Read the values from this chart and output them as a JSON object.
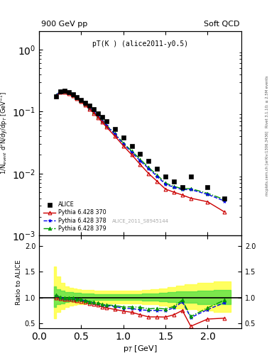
{
  "title_top": "900 GeV pp",
  "title_right": "Soft QCD",
  "plot_title": "pT(K ) (alice2011-y0.5)",
  "watermark": "ALICE_2011_S8945144",
  "right_label_top": "Rivet 3.1.10; ≥ 2.5M events",
  "right_label_mid": "mcplots.cern.ch [arXiv:1306.3436]",
  "ylabel_main": "1/N$_{event}$ d$^{2}$N/dy/dp$_{T}$ [GeV$^{-1}$]",
  "ylabel_ratio": "Ratio to ALICE",
  "xlabel": "p$_{T}$ [GeV]",
  "alice_x": [
    0.2,
    0.25,
    0.3,
    0.35,
    0.4,
    0.45,
    0.5,
    0.55,
    0.6,
    0.65,
    0.7,
    0.75,
    0.8,
    0.9,
    1.0,
    1.1,
    1.2,
    1.3,
    1.4,
    1.5,
    1.6,
    1.7,
    1.8,
    2.0,
    2.2
  ],
  "alice_y": [
    0.175,
    0.21,
    0.215,
    0.205,
    0.188,
    0.172,
    0.155,
    0.14,
    0.124,
    0.108,
    0.094,
    0.082,
    0.07,
    0.052,
    0.038,
    0.028,
    0.021,
    0.016,
    0.012,
    0.009,
    0.0075,
    0.006,
    0.009,
    0.006,
    0.004
  ],
  "py370_x": [
    0.2,
    0.25,
    0.3,
    0.35,
    0.4,
    0.45,
    0.5,
    0.55,
    0.6,
    0.65,
    0.7,
    0.75,
    0.8,
    0.9,
    1.0,
    1.1,
    1.2,
    1.3,
    1.4,
    1.5,
    1.6,
    1.7,
    1.8,
    2.0,
    2.2
  ],
  "py370_y": [
    0.175,
    0.205,
    0.207,
    0.197,
    0.18,
    0.162,
    0.144,
    0.127,
    0.11,
    0.094,
    0.08,
    0.067,
    0.056,
    0.04,
    0.028,
    0.02,
    0.014,
    0.01,
    0.0075,
    0.0056,
    0.005,
    0.0045,
    0.004,
    0.0035,
    0.0024
  ],
  "py378_x": [
    0.2,
    0.25,
    0.3,
    0.35,
    0.4,
    0.45,
    0.5,
    0.55,
    0.6,
    0.65,
    0.7,
    0.75,
    0.8,
    0.9,
    1.0,
    1.1,
    1.2,
    1.3,
    1.4,
    1.5,
    1.6,
    1.7,
    1.8,
    2.0,
    2.2
  ],
  "py378_y": [
    0.182,
    0.21,
    0.212,
    0.202,
    0.185,
    0.166,
    0.148,
    0.131,
    0.113,
    0.097,
    0.083,
    0.07,
    0.059,
    0.043,
    0.03,
    0.022,
    0.016,
    0.012,
    0.009,
    0.0067,
    0.006,
    0.0055,
    0.0055,
    0.0046,
    0.0036
  ],
  "py379_x": [
    0.2,
    0.25,
    0.3,
    0.35,
    0.4,
    0.45,
    0.5,
    0.55,
    0.6,
    0.65,
    0.7,
    0.75,
    0.8,
    0.9,
    1.0,
    1.1,
    1.2,
    1.3,
    1.4,
    1.5,
    1.6,
    1.7,
    1.8,
    2.0,
    2.2
  ],
  "py379_y": [
    0.183,
    0.211,
    0.213,
    0.203,
    0.186,
    0.167,
    0.149,
    0.132,
    0.114,
    0.098,
    0.084,
    0.071,
    0.06,
    0.044,
    0.031,
    0.023,
    0.017,
    0.0125,
    0.0095,
    0.007,
    0.0062,
    0.0057,
    0.0057,
    0.0048,
    0.0038
  ],
  "ratio370_y": [
    1.0,
    0.976,
    0.963,
    0.961,
    0.957,
    0.942,
    0.929,
    0.907,
    0.887,
    0.87,
    0.851,
    0.817,
    0.8,
    0.769,
    0.737,
    0.714,
    0.667,
    0.625,
    0.625,
    0.622,
    0.667,
    0.75,
    0.444,
    0.583,
    0.6
  ],
  "ratio378_y": [
    1.04,
    1.0,
    0.986,
    0.985,
    0.984,
    0.965,
    0.955,
    0.936,
    0.911,
    0.898,
    0.883,
    0.854,
    0.843,
    0.827,
    0.789,
    0.786,
    0.762,
    0.75,
    0.75,
    0.744,
    0.8,
    0.917,
    0.611,
    0.767,
    0.9
  ],
  "ratio379_y": [
    1.046,
    1.005,
    0.991,
    0.99,
    0.989,
    0.97,
    0.961,
    0.943,
    0.919,
    0.907,
    0.894,
    0.866,
    0.857,
    0.846,
    0.816,
    0.821,
    0.81,
    0.781,
    0.792,
    0.778,
    0.827,
    0.95,
    0.633,
    0.8,
    0.95
  ],
  "band_yellow_x": [
    0.175,
    0.225,
    0.275,
    0.325,
    0.375,
    0.425,
    0.475,
    0.525,
    0.575,
    0.625,
    0.675,
    0.725,
    0.775,
    0.875,
    0.975,
    1.075,
    1.175,
    1.275,
    1.375,
    1.475,
    1.575,
    1.675,
    1.775,
    1.975,
    2.175,
    2.275
  ],
  "band_yellow_low": [
    0.6,
    0.72,
    0.78,
    0.82,
    0.85,
    0.86,
    0.87,
    0.875,
    0.88,
    0.88,
    0.885,
    0.885,
    0.885,
    0.885,
    0.885,
    0.885,
    0.885,
    0.875,
    0.865,
    0.845,
    0.815,
    0.795,
    0.775,
    0.745,
    0.715,
    0.715
  ],
  "band_yellow_high": [
    1.6,
    1.4,
    1.28,
    1.22,
    1.19,
    1.17,
    1.16,
    1.15,
    1.14,
    1.14,
    1.13,
    1.13,
    1.13,
    1.13,
    1.13,
    1.135,
    1.135,
    1.145,
    1.155,
    1.175,
    1.205,
    1.225,
    1.255,
    1.285,
    1.315,
    1.315
  ],
  "band_green_x": [
    0.175,
    0.225,
    0.275,
    0.325,
    0.375,
    0.425,
    0.475,
    0.525,
    0.575,
    0.625,
    0.675,
    0.725,
    0.775,
    0.875,
    0.975,
    1.075,
    1.175,
    1.275,
    1.375,
    1.475,
    1.575,
    1.675,
    1.775,
    1.975,
    2.175,
    2.275
  ],
  "band_green_low": [
    0.82,
    0.87,
    0.89,
    0.91,
    0.92,
    0.93,
    0.935,
    0.94,
    0.945,
    0.945,
    0.95,
    0.95,
    0.95,
    0.95,
    0.95,
    0.95,
    0.95,
    0.945,
    0.94,
    0.93,
    0.915,
    0.905,
    0.895,
    0.875,
    0.865,
    0.865
  ],
  "band_green_high": [
    1.22,
    1.16,
    1.13,
    1.11,
    1.1,
    1.09,
    1.085,
    1.08,
    1.075,
    1.075,
    1.07,
    1.07,
    1.07,
    1.07,
    1.07,
    1.07,
    1.07,
    1.075,
    1.08,
    1.09,
    1.105,
    1.115,
    1.125,
    1.135,
    1.145,
    1.145
  ],
  "color_alice": "#000000",
  "color_py370": "#cc0000",
  "color_py378": "#0000ee",
  "color_py379": "#009900",
  "color_yellow": "#ffff44",
  "color_green": "#44dd44",
  "xlim": [
    0.0,
    2.4
  ],
  "ylim_main_low": 0.001,
  "ylim_main_high": 2.0,
  "ylim_ratio_low": 0.4,
  "ylim_ratio_high": 2.2,
  "ratio_yticks": [
    0.5,
    1.0,
    1.5,
    2.0
  ],
  "main_yticks": [
    0.001,
    0.01,
    0.1,
    1.0
  ],
  "xticks": [
    0.0,
    0.5,
    1.0,
    1.5,
    2.0
  ]
}
